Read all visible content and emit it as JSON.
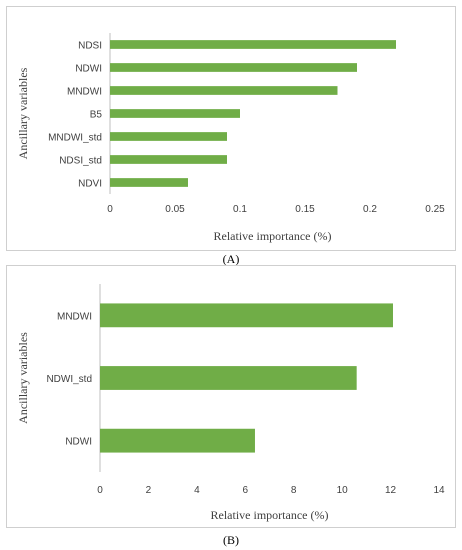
{
  "chart_data": [
    {
      "type": "bar",
      "orientation": "horizontal",
      "categories": [
        "NDSI",
        "NDWI",
        "MNDWI",
        "B5",
        "MNDWI_std",
        "NDSI_std",
        "NDVI"
      ],
      "values": [
        0.22,
        0.19,
        0.175,
        0.1,
        0.09,
        0.09,
        0.06
      ],
      "xlabel": "Relative importance (%)",
      "ylabel": "Ancillary variables",
      "xlim": [
        0,
        0.25
      ],
      "xticks": [
        "0",
        "0.05",
        "0.1",
        "0.15",
        "0.2",
        "0.25"
      ],
      "color": "#70ad47",
      "grid": false,
      "caption": "(A)"
    },
    {
      "type": "bar",
      "orientation": "horizontal",
      "categories": [
        "MNDWI",
        "NDWI_std",
        "NDWI"
      ],
      "values": [
        12.1,
        10.6,
        6.4
      ],
      "xlabel": "Relative importance (%)",
      "ylabel": "Ancillary variables",
      "xlim": [
        0,
        14
      ],
      "xticks": [
        "0",
        "2",
        "4",
        "6",
        "8",
        "10",
        "12",
        "14"
      ],
      "color": "#70ad47",
      "grid": false,
      "caption": "(B)"
    }
  ]
}
